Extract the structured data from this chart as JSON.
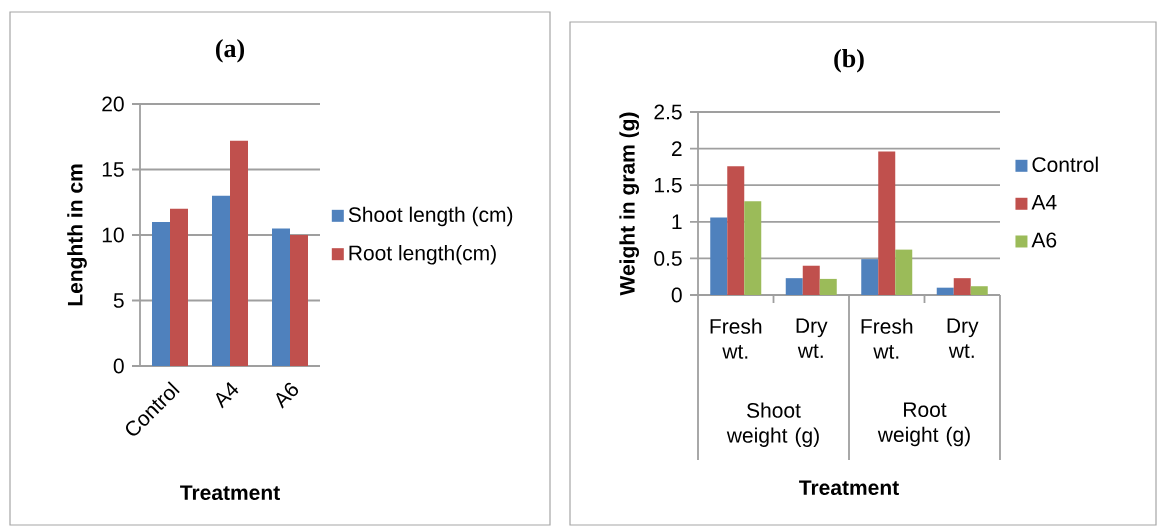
{
  "chart_data": [
    {
      "type": "bar",
      "title": "(a)",
      "xlabel": "Treatment",
      "ylabel": "Lenghth in cm",
      "categories": [
        "Control",
        "A4",
        "A6"
      ],
      "series": [
        {
          "name": "Shoot length (cm)",
          "color": "#4f81bd",
          "values": [
            11,
            13,
            10.5
          ]
        },
        {
          "name": "Root length(cm)",
          "color": "#c0504d",
          "values": [
            12,
            17.2,
            10
          ]
        }
      ],
      "ylim": [
        0,
        20
      ],
      "yticks": [
        0,
        5,
        10,
        15,
        20
      ],
      "grid": "y",
      "legend": "right"
    },
    {
      "type": "bar",
      "title": "(b)",
      "xlabel": "Treatment",
      "ylabel": "Weight in gram (g)",
      "categories": [
        "Fresh wt.",
        "Dry wt.",
        "Fresh wt.",
        "Dry wt."
      ],
      "annotations": [
        "Shoot weight (g)",
        "Root weight (g)"
      ],
      "series": [
        {
          "name": "Control",
          "color": "#4f81bd",
          "values": [
            1.06,
            0.23,
            0.49,
            0.1
          ]
        },
        {
          "name": "A4",
          "color": "#c0504d",
          "values": [
            1.76,
            0.4,
            1.96,
            0.23
          ]
        },
        {
          "name": "A6",
          "color": "#9bbb59",
          "values": [
            1.28,
            0.22,
            0.62,
            0.12
          ]
        }
      ],
      "ylim": [
        0,
        2.5
      ],
      "yticks": [
        0,
        0.5,
        1,
        1.5,
        2,
        2.5
      ],
      "grid": "y",
      "legend": "right"
    }
  ]
}
